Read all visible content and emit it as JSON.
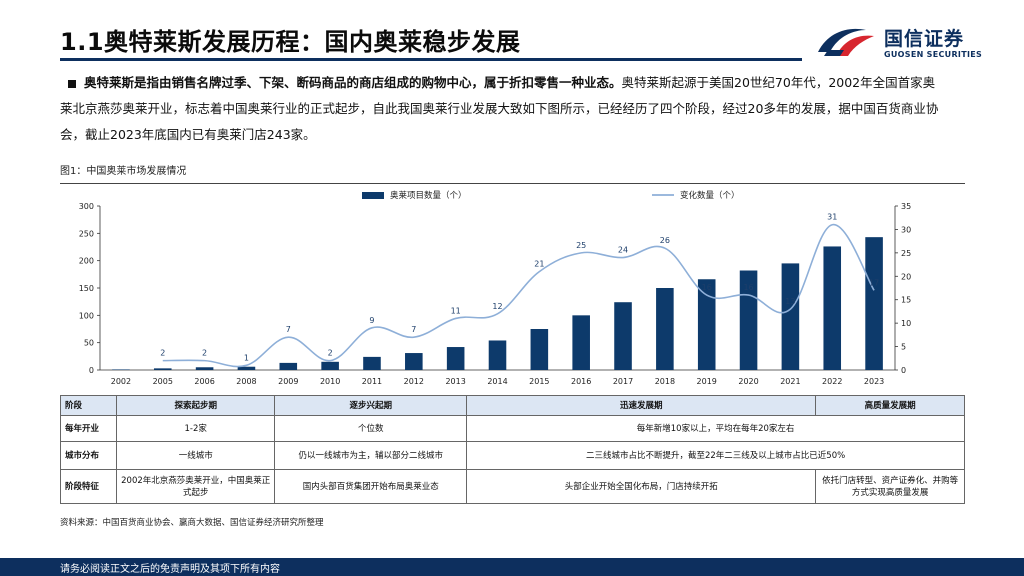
{
  "header": {
    "title": "1.1奥特莱斯发展历程：国内奥莱稳步发展",
    "logo_cn": "国信证券",
    "logo_en": "GUOSEN SECURITIES"
  },
  "intro": {
    "bold": "奥特莱斯是指由销售名牌过季、下架、断码商品的商店组成的购物中心，属于折扣零售一种业态。",
    "rest": "奥特莱斯起源于美国20世纪70年代，2002年全国首家奥莱北京燕莎奥莱开业，标志着中国奥莱行业的正式起步，自此我国奥莱行业发展大致如下图所示，已经经历了四个阶段，经过20多年的发展，据中国百货商业协会，截止2023年底国内已有奥莱门店243家。"
  },
  "figure": {
    "caption": "图1：中国奥莱市场发展情况",
    "source": "资料来源：中国百货商业协会、赢商大数据、国信证券经济研究所整理"
  },
  "chart_data": {
    "type": "bar+line",
    "categories": [
      "2002",
      "2005",
      "2006",
      "2008",
      "2009",
      "2010",
      "2011",
      "2012",
      "2013",
      "2014",
      "2015",
      "2016",
      "2017",
      "2018",
      "2019",
      "2020",
      "2021",
      "2022",
      "2023"
    ],
    "series": [
      {
        "name": "奥莱项目数量（个）",
        "type": "bar",
        "axis": "left",
        "color": "#0d3a6b",
        "values": [
          1,
          3,
          5,
          6,
          13,
          15,
          24,
          31,
          42,
          54,
          75,
          100,
          124,
          150,
          166,
          182,
          195,
          226,
          243
        ]
      },
      {
        "name": "变化数量（个）",
        "type": "line",
        "axis": "right",
        "color": "#8eafd8",
        "values": [
          null,
          2,
          2,
          1,
          7,
          2,
          9,
          7,
          11,
          12,
          21,
          25,
          24,
          26,
          16,
          16,
          13,
          31,
          17
        ]
      }
    ],
    "y_left": {
      "min": 0,
      "max": 300,
      "ticks": [
        0,
        50,
        100,
        150,
        200,
        250,
        300
      ]
    },
    "y_right": {
      "min": 0,
      "max": 35,
      "ticks": [
        0,
        5,
        10,
        15,
        20,
        25,
        30,
        35
      ]
    },
    "legend": "top-center"
  },
  "stages_table": {
    "header_label": "阶段",
    "stages": [
      "探索起步期",
      "逐步兴起期",
      "迅速发展期",
      "高质量发展期"
    ],
    "rows": [
      {
        "label": "每年开业",
        "cells": [
          "1-2家",
          "个位数",
          "每年新增10家以上，平均在每年20家左右",
          ""
        ]
      },
      {
        "label": "城市分布",
        "cells": [
          "一线城市",
          "仍以一线城市为主，辅以部分二线城市",
          "二三线城市占比不断提升，截至22年二三线及以上城市占比已近50%",
          ""
        ]
      },
      {
        "label": "阶段特征",
        "cells": [
          "2002年北京燕莎奥莱开业，中国奥莱正式起步",
          "国内头部百货集团开始布局奥莱业态",
          "头部企业开始全国化布局，门店持续开拓",
          "依托门店转型、资产证券化、并购等方式实现高质量发展"
        ]
      }
    ]
  },
  "footer": {
    "disclaimer": "请务必阅读正文之后的免责声明及其项下所有内容"
  },
  "colors": {
    "brand_navy": "#0d2f5e",
    "brand_red": "#d7262f",
    "bar": "#0d3a6b",
    "line": "#8eafd8",
    "table_header": "#dce6f3"
  }
}
